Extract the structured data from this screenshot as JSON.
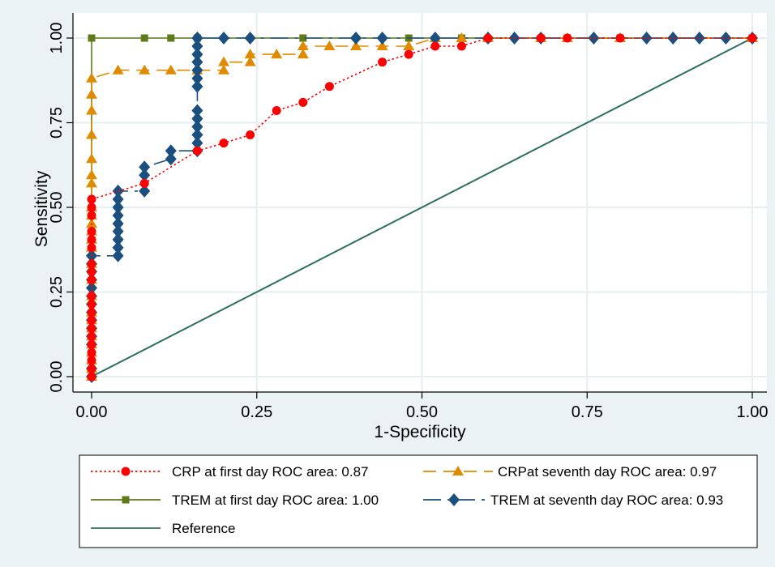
{
  "chart_data": {
    "type": "line",
    "title": "",
    "xlabel": "1-Specificity",
    "ylabel": "Sensitivity",
    "xlim": [
      0,
      1
    ],
    "ylim": [
      0,
      1
    ],
    "x_ticks": [
      0,
      0.25,
      0.5,
      0.75,
      1
    ],
    "y_ticks": [
      0,
      0.25,
      0.5,
      0.75,
      1
    ],
    "x_tick_labels": [
      "0.00",
      "0.25",
      "0.50",
      "0.75",
      "1.00"
    ],
    "y_tick_labels": [
      "0.00",
      "0.25",
      "0.50",
      "0.75",
      "1.00"
    ],
    "grid": true,
    "legend_position": "bottom",
    "series": [
      {
        "name": "CRP at first day ROC area: 0.87",
        "color": "#ff0000",
        "marker": "circle",
        "line_style": "dotted",
        "x": [
          0,
          0,
          0,
          0,
          0,
          0,
          0,
          0,
          0,
          0,
          0,
          0,
          0,
          0,
          0,
          0,
          0,
          0,
          0,
          0,
          0.08,
          0.16,
          0.2,
          0.24,
          0.28,
          0.32,
          0.36,
          0.44,
          0.48,
          0.52,
          0.56,
          0.6,
          0.68,
          0.72,
          0.8,
          1
        ],
        "y": [
          0,
          0.024,
          0.048,
          0.071,
          0.095,
          0.119,
          0.143,
          0.167,
          0.19,
          0.214,
          0.238,
          0.286,
          0.31,
          0.333,
          0.381,
          0.405,
          0.429,
          0.476,
          0.5,
          0.524,
          0.571,
          0.667,
          0.69,
          0.714,
          0.786,
          0.81,
          0.857,
          0.929,
          0.952,
          0.976,
          0.976,
          1,
          1,
          1,
          1,
          1
        ]
      },
      {
        "name": "CRPat seventh day ROC area: 0.97",
        "color": "#e08a00",
        "marker": "triangle",
        "line_style": "dashed",
        "x": [
          0,
          0,
          0,
          0,
          0,
          0,
          0,
          0,
          0,
          0,
          0,
          0,
          0,
          0,
          0,
          0,
          0,
          0,
          0,
          0,
          0,
          0,
          0,
          0,
          0,
          0.04,
          0.08,
          0.12,
          0.16,
          0.2,
          0.2,
          0.24,
          0.24,
          0.28,
          0.32,
          0.32,
          0.36,
          0.4,
          0.44,
          0.48,
          0.52,
          0.56,
          0.6,
          0.68,
          0.72,
          0.8,
          1
        ],
        "y": [
          0,
          0.024,
          0.048,
          0.071,
          0.095,
          0.119,
          0.143,
          0.167,
          0.19,
          0.238,
          0.286,
          0.333,
          0.381,
          0.405,
          0.429,
          0.452,
          0.476,
          0.5,
          0.571,
          0.595,
          0.643,
          0.714,
          0.786,
          0.833,
          0.881,
          0.905,
          0.905,
          0.905,
          0.905,
          0.905,
          0.929,
          0.929,
          0.952,
          0.952,
          0.952,
          0.976,
          0.976,
          0.976,
          0.976,
          0.976,
          1,
          1,
          1,
          1,
          1,
          1,
          1
        ]
      },
      {
        "name": "TREM at first day ROC area: 1.00",
        "color": "#5e7a1a",
        "marker": "square",
        "line_style": "solid",
        "x": [
          0,
          0,
          0.08,
          0.12,
          0.16,
          0.32,
          0.48,
          0.56,
          0.68,
          0.72,
          0.8,
          1
        ],
        "y": [
          0,
          1,
          1,
          1,
          1,
          1,
          1,
          1,
          1,
          1,
          1,
          1
        ]
      },
      {
        "name": "TREM at seventh day ROC area: 0.93",
        "color": "#1a4f80",
        "marker": "diamond",
        "line_style": "longdash",
        "x": [
          0,
          0,
          0,
          0,
          0,
          0,
          0,
          0,
          0,
          0,
          0,
          0,
          0,
          0,
          0,
          0.04,
          0.04,
          0.04,
          0.04,
          0.04,
          0.04,
          0.04,
          0.04,
          0.04,
          0.08,
          0.08,
          0.08,
          0.12,
          0.12,
          0.16,
          0.16,
          0.16,
          0.16,
          0.16,
          0.16,
          0.16,
          0.16,
          0.16,
          0.16,
          0.16,
          0.16,
          0.16,
          0.16,
          0.2,
          0.24,
          0.4,
          0.44,
          0.52,
          0.6,
          0.64,
          0.68,
          0.76,
          0.84,
          0.88,
          0.92,
          0.96,
          1
        ],
        "y": [
          0,
          0.024,
          0.095,
          0.119,
          0.143,
          0.167,
          0.19,
          0.214,
          0.238,
          0.262,
          0.286,
          0.31,
          0.333,
          0.357,
          0.357,
          0.357,
          0.381,
          0.405,
          0.429,
          0.452,
          0.476,
          0.5,
          0.524,
          0.548,
          0.548,
          0.595,
          0.619,
          0.643,
          0.667,
          0.667,
          0.69,
          0.714,
          0.738,
          0.762,
          0.786,
          0.857,
          0.881,
          0.905,
          0.929,
          0.952,
          0.976,
          1,
          1,
          1,
          1,
          1,
          1,
          1,
          1,
          1,
          1,
          1,
          1,
          1,
          1,
          1,
          1
        ]
      },
      {
        "name": "Reference",
        "color": "#2e6e62",
        "marker": "none",
        "line_style": "solid",
        "x": [
          0,
          1
        ],
        "y": [
          0,
          1
        ]
      }
    ]
  }
}
